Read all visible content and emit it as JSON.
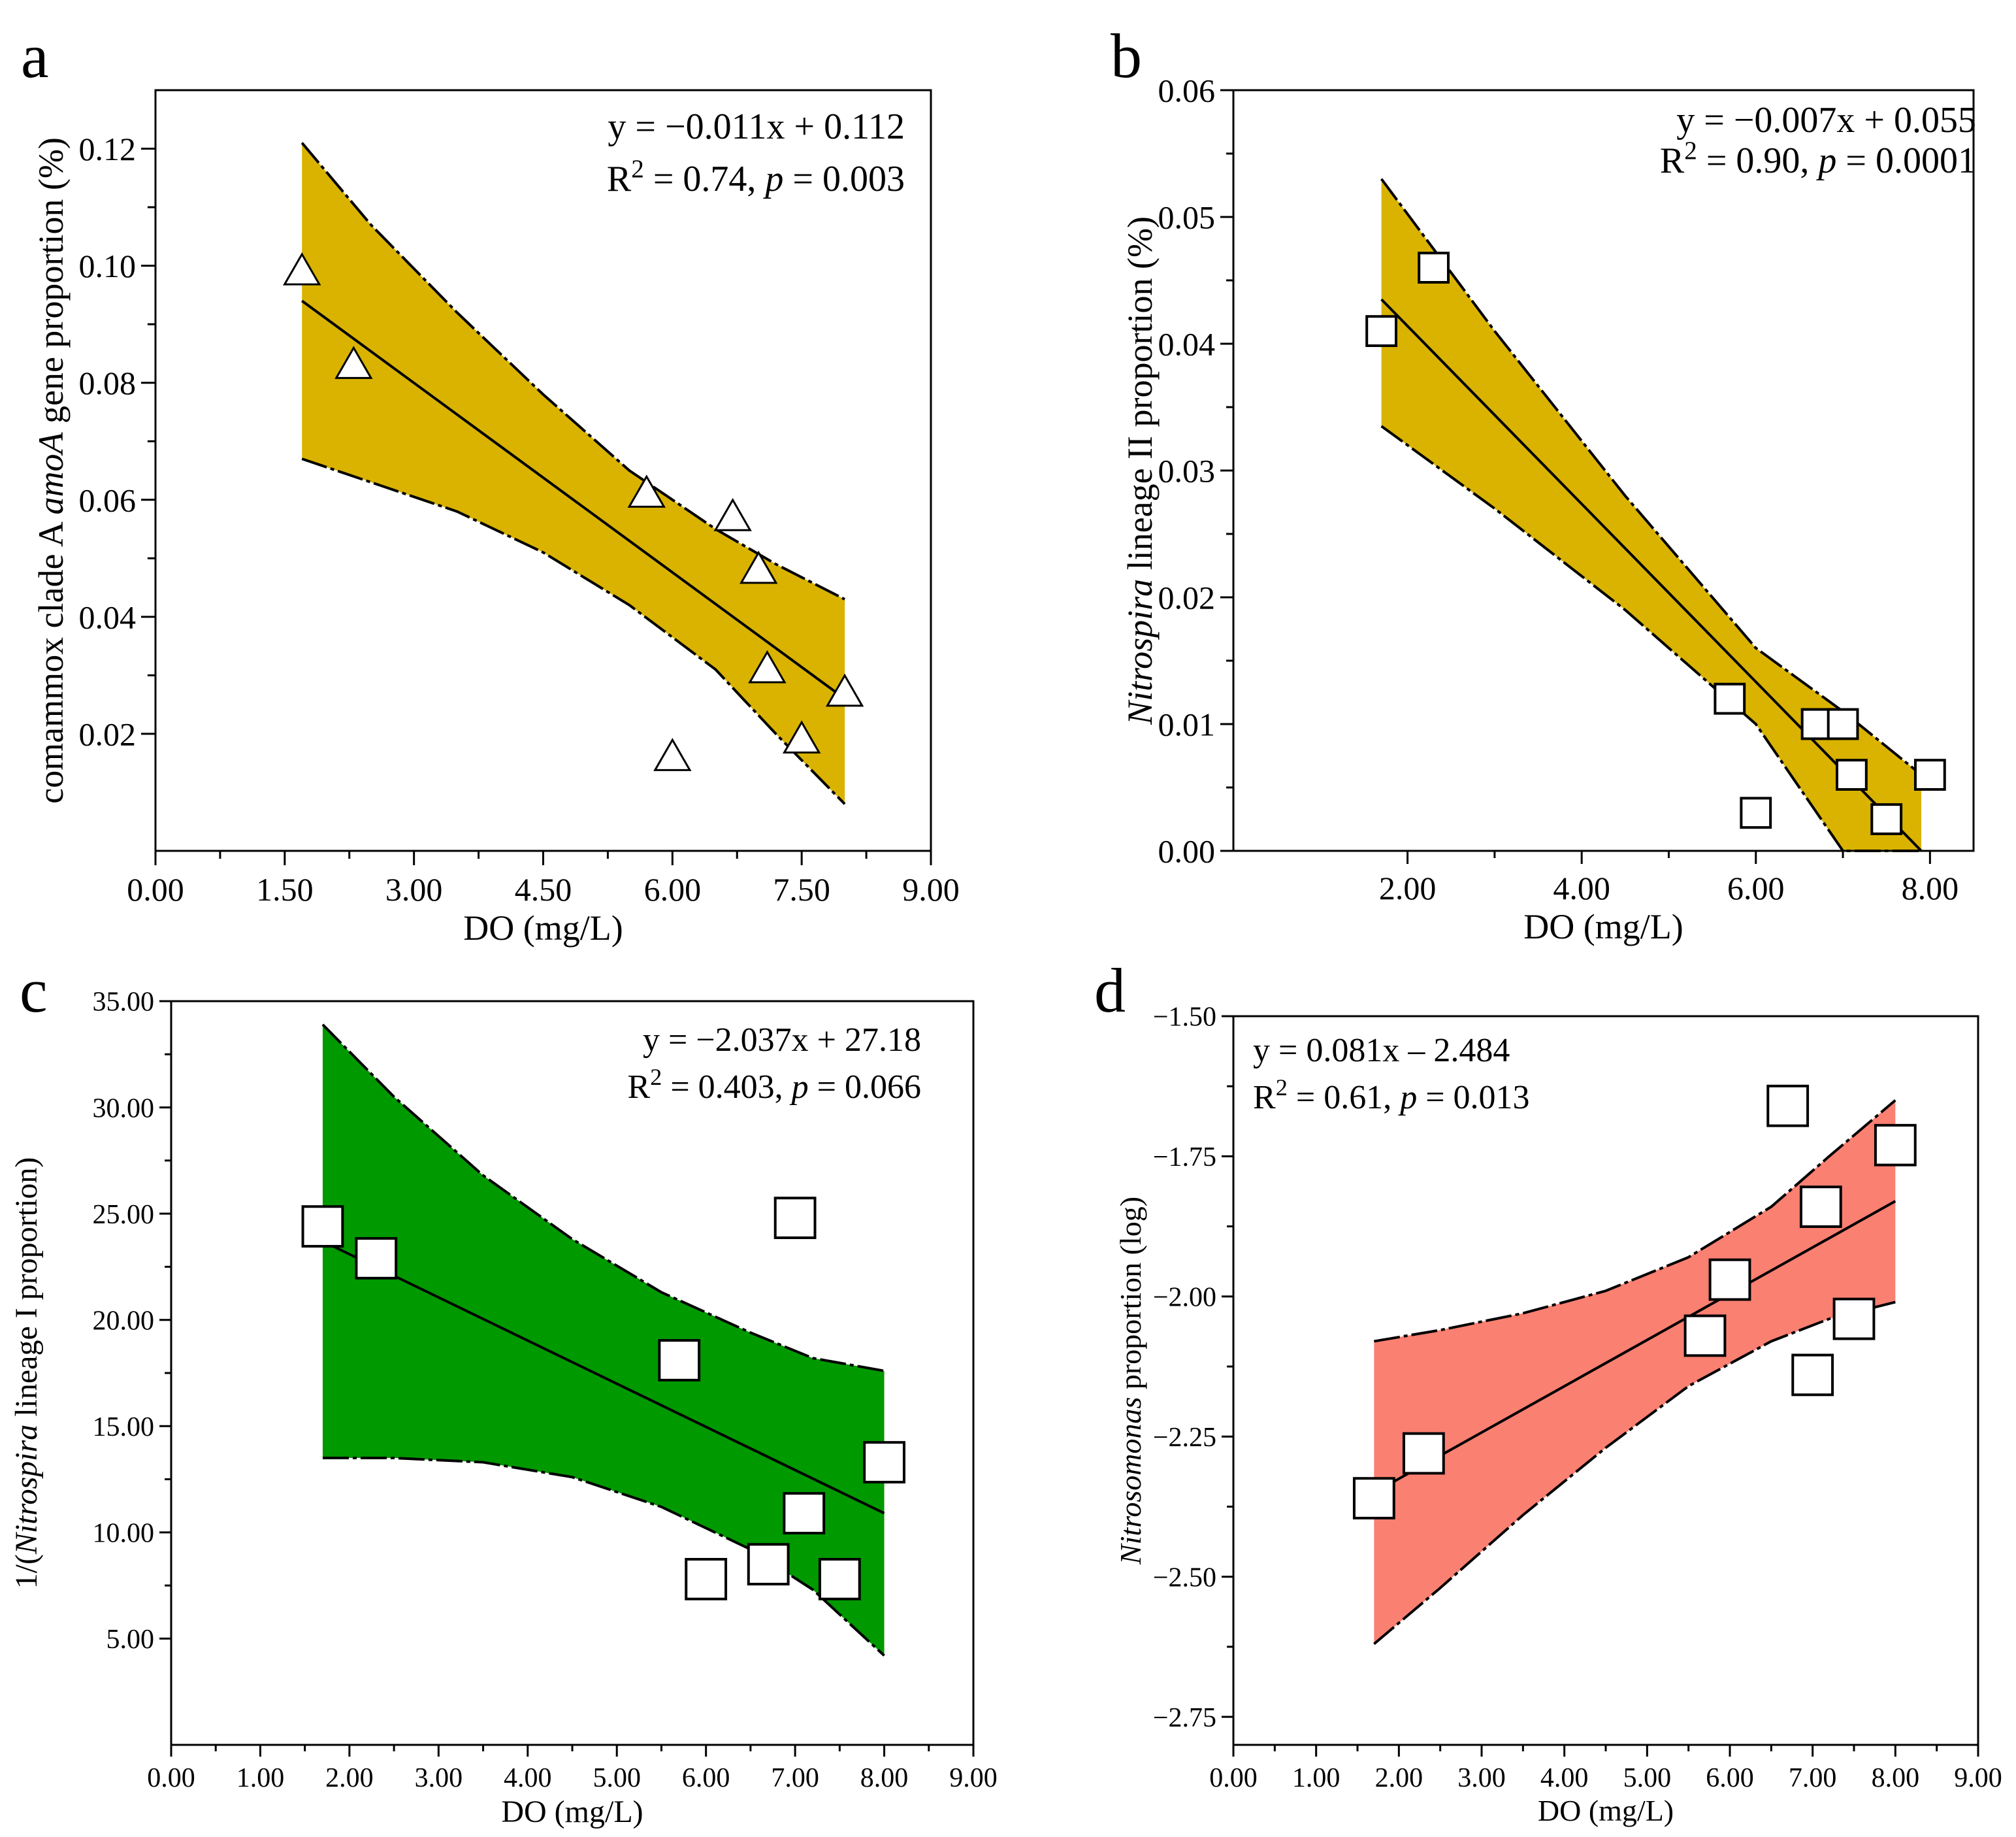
{
  "figure": {
    "panel_count": 4
  },
  "chart_data": [
    {
      "panel": "a",
      "type": "scatter",
      "marker": "triangle",
      "band_color": "#d9b300",
      "xlabel": "DO (mg/L)",
      "ylabel_parts": [
        "comammox clade A ",
        "amoA",
        "  gene proportion (%)"
      ],
      "ylabel_italic": [
        false,
        true,
        false
      ],
      "xlim": [
        0,
        9
      ],
      "ylim": [
        0,
        0.13
      ],
      "xticks": [
        0,
        1.5,
        3,
        4.5,
        6,
        7.5,
        9
      ],
      "xtick_labels": [
        "0.00",
        "1.50",
        "3.00",
        "4.50",
        "6.00",
        "7.50",
        "9.00"
      ],
      "yticks": [
        0.02,
        0.04,
        0.06,
        0.08,
        0.1,
        0.12
      ],
      "ytick_labels": [
        "0.02",
        "0.04",
        "0.06",
        "0.08",
        "0.10",
        "0.12"
      ],
      "equation": "y = −0.011x + 0.112",
      "stats": {
        "r_prefix": "R",
        "r_sup": "2",
        "r_mid": " = 0.74, ",
        "p": "p",
        "p_rest": " = 0.003"
      },
      "points": [
        [
          1.7,
          0.099
        ],
        [
          2.3,
          0.083
        ],
        [
          5.7,
          0.061
        ],
        [
          6.7,
          0.057
        ],
        [
          7.0,
          0.048
        ],
        [
          7.1,
          0.031
        ],
        [
          6.0,
          0.016
        ],
        [
          7.5,
          0.019
        ],
        [
          8.0,
          0.027
        ]
      ],
      "fit": {
        "x": [
          1.7,
          8.0
        ],
        "y": [
          0.094,
          0.026
        ]
      },
      "band": {
        "upper": [
          [
            1.7,
            0.121
          ],
          [
            2.5,
            0.107
          ],
          [
            3.5,
            0.092
          ],
          [
            4.5,
            0.078
          ],
          [
            5.5,
            0.065
          ],
          [
            6.5,
            0.055
          ],
          [
            7.2,
            0.049
          ],
          [
            8.0,
            0.043
          ]
        ],
        "lower": [
          [
            1.7,
            0.067
          ],
          [
            2.5,
            0.063
          ],
          [
            3.5,
            0.058
          ],
          [
            4.5,
            0.051
          ],
          [
            5.5,
            0.042
          ],
          [
            6.5,
            0.031
          ],
          [
            7.2,
            0.02
          ],
          [
            8.0,
            0.008
          ]
        ]
      }
    },
    {
      "panel": "b",
      "type": "scatter",
      "marker": "square",
      "band_color": "#d9b300",
      "xlabel": "DO (mg/L)",
      "ylabel_parts": [
        "Nitrospira",
        " lineage II proportion (%)"
      ],
      "ylabel_italic": [
        true,
        false
      ],
      "xlim": [
        0,
        8.5
      ],
      "ylim": [
        0,
        0.06
      ],
      "xticks": [
        2,
        4,
        6,
        8
      ],
      "xtick_labels": [
        "2.00",
        "4.00",
        "6.00",
        "8.00"
      ],
      "yticks": [
        0,
        0.01,
        0.02,
        0.03,
        0.04,
        0.05,
        0.06
      ],
      "ytick_labels": [
        "0.00",
        "0.01",
        "0.02",
        "0.03",
        "0.04",
        "0.05",
        "0.06"
      ],
      "equation": "y = −0.007x +  0.055",
      "stats": {
        "r_prefix": "R",
        "r_sup": "2",
        "r_mid": " = 0.90, ",
        "p": "p",
        "p_rest": " = 0.0001"
      },
      "points": [
        [
          1.7,
          0.041
        ],
        [
          2.3,
          0.046
        ],
        [
          5.7,
          0.012
        ],
        [
          6.0,
          0.003
        ],
        [
          6.7,
          0.01
        ],
        [
          7.0,
          0.01
        ],
        [
          7.1,
          0.006
        ],
        [
          7.5,
          0.0025
        ],
        [
          8.0,
          0.006
        ]
      ],
      "fit": {
        "x": [
          1.7,
          7.9
        ],
        "y": [
          0.0435,
          0.0
        ]
      },
      "band": {
        "upper": [
          [
            1.7,
            0.053
          ],
          [
            3.0,
            0.041
          ],
          [
            4.5,
            0.028
          ],
          [
            6.0,
            0.016
          ],
          [
            7.0,
            0.011
          ],
          [
            7.9,
            0.006
          ]
        ],
        "lower": [
          [
            1.7,
            0.0335
          ],
          [
            3.0,
            0.027
          ],
          [
            4.5,
            0.019
          ],
          [
            6.0,
            0.01
          ],
          [
            7.0,
            0.0
          ],
          [
            7.9,
            0.0
          ]
        ]
      }
    },
    {
      "panel": "c",
      "type": "scatter",
      "marker": "square",
      "band_color": "#009900",
      "xlabel": "DO (mg/L)",
      "ylabel_parts": [
        "1/(",
        "Nitrospira",
        " lineage I proportion)"
      ],
      "ylabel_italic": [
        false,
        true,
        false
      ],
      "xlim": [
        0,
        9
      ],
      "ylim": [
        0,
        35
      ],
      "xticks": [
        0,
        1,
        2,
        3,
        4,
        5,
        6,
        7,
        8,
        9
      ],
      "xtick_labels": [
        "0.00",
        "1.00",
        "2.00",
        "3.00",
        "4.00",
        "5.00",
        "6.00",
        "7.00",
        "8.00",
        "9.00"
      ],
      "yticks": [
        5,
        10,
        15,
        20,
        25,
        30,
        35
      ],
      "ytick_labels": [
        "5.00",
        "10.00",
        "15.00",
        "20.00",
        "25.00",
        "30.00",
        "35.00"
      ],
      "equation": "y = −2.037x + 27.18",
      "stats": {
        "r_prefix": "R",
        "r_sup": "2",
        "r_mid": " = 0.403, ",
        "p": "p",
        "p_rest": " = 0.066"
      },
      "points": [
        [
          1.7,
          24.4
        ],
        [
          2.3,
          22.9
        ],
        [
          5.7,
          18.1
        ],
        [
          6.0,
          7.8
        ],
        [
          6.7,
          8.5
        ],
        [
          7.0,
          24.8
        ],
        [
          7.1,
          10.9
        ],
        [
          7.5,
          7.8
        ],
        [
          8.0,
          13.3
        ]
      ],
      "fit": {
        "x": [
          1.7,
          8.0
        ],
        "y": [
          23.7,
          10.9
        ]
      },
      "band": {
        "upper": [
          [
            1.7,
            33.9
          ],
          [
            2.5,
            30.5
          ],
          [
            3.5,
            26.8
          ],
          [
            4.5,
            23.8
          ],
          [
            5.5,
            21.3
          ],
          [
            6.5,
            19.4
          ],
          [
            7.2,
            18.2
          ],
          [
            8.0,
            17.6
          ]
        ],
        "lower": [
          [
            1.7,
            13.5
          ],
          [
            2.5,
            13.5
          ],
          [
            3.5,
            13.3
          ],
          [
            4.5,
            12.6
          ],
          [
            5.5,
            11.2
          ],
          [
            6.5,
            9.2
          ],
          [
            7.2,
            7.3
          ],
          [
            8.0,
            4.2
          ]
        ]
      }
    },
    {
      "panel": "d",
      "type": "scatter",
      "marker": "square",
      "band_color": "#fa8072",
      "xlabel": "DO (mg/L)",
      "ylabel_parts": [
        "Nitrosomonas",
        " proportion (log)"
      ],
      "ylabel_italic": [
        true,
        false
      ],
      "xlim": [
        0,
        9
      ],
      "ylim": [
        -2.8,
        -1.5
      ],
      "xticks": [
        0,
        1,
        2,
        3,
        4,
        5,
        6,
        7,
        8,
        9
      ],
      "xtick_labels": [
        "0.00",
        "1.00",
        "2.00",
        "3.00",
        "4.00",
        "5.00",
        "6.00",
        "7.00",
        "8.00",
        "9.00"
      ],
      "yticks": [
        -2.75,
        -2.5,
        -2.25,
        -2.0,
        -1.75,
        -1.5
      ],
      "ytick_labels": [
        "−2.75",
        "−2.50",
        "−2.25",
        "−2.00",
        "−1.75",
        "−1.50"
      ],
      "equation": "y = 0.081x – 2.484",
      "stats": {
        "r_prefix": "R",
        "r_sup": "2",
        "r_mid": " = 0.61, ",
        "p": "p",
        "p_rest": " = 0.013"
      },
      "points": [
        [
          1.7,
          -2.36
        ],
        [
          2.3,
          -2.28
        ],
        [
          5.7,
          -2.07
        ],
        [
          6.0,
          -1.97
        ],
        [
          6.7,
          -1.66
        ],
        [
          7.0,
          -2.14
        ],
        [
          7.1,
          -1.84
        ],
        [
          7.5,
          -2.04
        ],
        [
          8.0,
          -1.73
        ]
      ],
      "fit": {
        "x": [
          1.7,
          8.0
        ],
        "y": [
          -2.35,
          -1.83
        ]
      },
      "band": {
        "upper": [
          [
            1.7,
            -2.08
          ],
          [
            2.5,
            -2.06
          ],
          [
            3.5,
            -2.03
          ],
          [
            4.5,
            -1.99
          ],
          [
            5.5,
            -1.93
          ],
          [
            6.5,
            -1.84
          ],
          [
            7.2,
            -1.75
          ],
          [
            8.0,
            -1.65
          ]
        ],
        "lower": [
          [
            1.7,
            -2.62
          ],
          [
            2.5,
            -2.52
          ],
          [
            3.5,
            -2.39
          ],
          [
            4.5,
            -2.27
          ],
          [
            5.5,
            -2.16
          ],
          [
            6.5,
            -2.08
          ],
          [
            7.2,
            -2.04
          ],
          [
            8.0,
            -2.01
          ]
        ]
      }
    }
  ]
}
